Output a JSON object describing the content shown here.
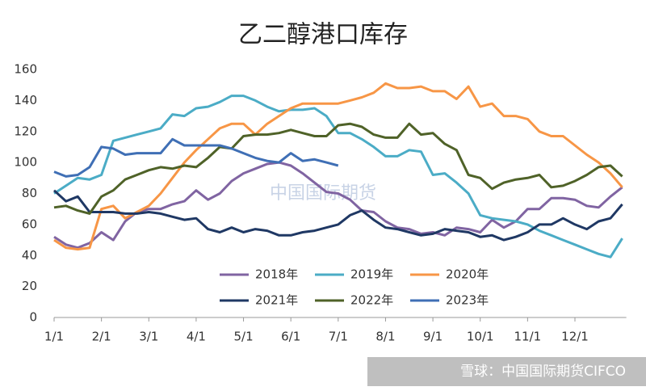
{
  "chart_data": {
    "type": "line",
    "title": "乙二醇港口库存",
    "categories": [
      "1/1",
      null,
      null,
      null,
      "2/1",
      null,
      null,
      null,
      "3/1",
      null,
      null,
      null,
      "4/1",
      null,
      null,
      null,
      "5/1",
      null,
      null,
      null,
      "6/1",
      null,
      null,
      null,
      "7/1",
      null,
      null,
      null,
      "8/1",
      null,
      null,
      null,
      "9/1",
      null,
      null,
      null,
      "10/1",
      null,
      null,
      null,
      "11/1",
      null,
      null,
      null,
      "12/1",
      null,
      null,
      null,
      null
    ],
    "series": [
      {
        "name": "2018年",
        "color": "#8064a2",
        "values": [
          52,
          47,
          45,
          48,
          55,
          50,
          62,
          68,
          70,
          70,
          73,
          75,
          82,
          76,
          80,
          88,
          93,
          96,
          99,
          100,
          98,
          93,
          87,
          81,
          80,
          76,
          69,
          68,
          62,
          58,
          57,
          54,
          55,
          53,
          58,
          57,
          55,
          63,
          58,
          62,
          70,
          70,
          77,
          77,
          76,
          72,
          71,
          78,
          84
        ]
      },
      {
        "name": "2019年",
        "color": "#4bacc6",
        "values": [
          80,
          85,
          90,
          89,
          92,
          114,
          116,
          118,
          120,
          122,
          131,
          130,
          135,
          136,
          139,
          143,
          143,
          140,
          136,
          133,
          134,
          134,
          135,
          130,
          119,
          119,
          115,
          110,
          104,
          104,
          108,
          107,
          92,
          93,
          87,
          80,
          66,
          64,
          63,
          62,
          60,
          56,
          53,
          50,
          47,
          44,
          41,
          39,
          51
        ]
      },
      {
        "name": "2020年",
        "color": "#f79646",
        "values": [
          50,
          45,
          44,
          45,
          70,
          72,
          64,
          68,
          72,
          80,
          90,
          100,
          108,
          115,
          122,
          125,
          125,
          118,
          125,
          130,
          135,
          138,
          138,
          138,
          138,
          140,
          142,
          145,
          151,
          148,
          148,
          149,
          146,
          146,
          141,
          149,
          136,
          138,
          130,
          130,
          128,
          120,
          117,
          117,
          111,
          105,
          100,
          93,
          84
        ]
      },
      {
        "name": "2021年",
        "color": "#1f3864",
        "values": [
          82,
          75,
          78,
          68,
          68,
          68,
          67,
          67,
          68,
          67,
          65,
          63,
          64,
          57,
          55,
          58,
          55,
          57,
          56,
          53,
          53,
          55,
          56,
          58,
          60,
          66,
          69,
          63,
          58,
          57,
          55,
          53,
          54,
          57,
          56,
          55,
          52,
          53,
          50,
          52,
          55,
          60,
          60,
          64,
          60,
          57,
          62,
          64,
          73
        ]
      },
      {
        "name": "2022年",
        "color": "#4f6228",
        "values": [
          71,
          72,
          69,
          67,
          78,
          82,
          89,
          92,
          95,
          97,
          96,
          98,
          97,
          103,
          110,
          109,
          117,
          118,
          118,
          119,
          121,
          119,
          117,
          117,
          124,
          125,
          123,
          118,
          116,
          116,
          125,
          118,
          119,
          112,
          108,
          92,
          90,
          83,
          87,
          89,
          90,
          92,
          84,
          85,
          88,
          92,
          97,
          98,
          91
        ]
      },
      {
        "name": "2023年",
        "color": "#3f6fb5",
        "values": [
          94,
          91,
          92,
          97,
          110,
          109,
          105,
          106,
          106,
          106,
          115,
          111,
          111,
          111,
          111,
          109,
          106,
          103,
          101,
          100,
          106,
          101,
          102,
          100,
          98,
          null,
          null,
          null,
          null,
          null,
          null,
          null,
          null,
          null,
          null,
          null,
          null,
          null,
          null,
          null,
          null,
          null,
          null,
          null,
          null,
          null,
          null,
          null,
          null
        ]
      }
    ],
    "ylim": [
      0,
      160
    ],
    "yticks": [
      0,
      20,
      40,
      60,
      80,
      100,
      120,
      140,
      160
    ],
    "grid": false,
    "watermark": "中国国际期货",
    "source": "雪球：中国国际期货CIFCO"
  }
}
